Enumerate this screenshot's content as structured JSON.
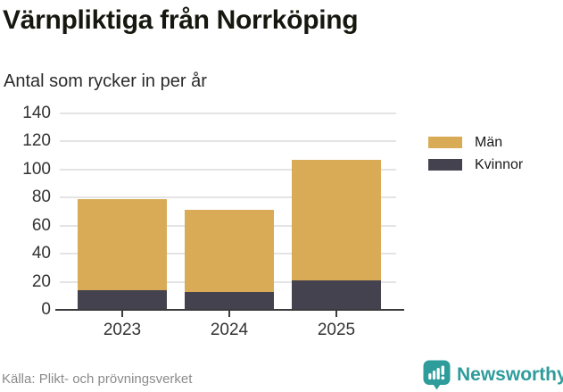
{
  "chart_data": {
    "type": "bar",
    "stacked": true,
    "title": "Värnpliktiga från Norrköping",
    "subtitle": "Antal som rycker in per år",
    "categories": [
      "2023",
      "2024",
      "2025"
    ],
    "series": [
      {
        "name": "Män",
        "color": "#d9ab57",
        "values": [
          65,
          58,
          86
        ]
      },
      {
        "name": "Kvinnor",
        "color": "#44424f",
        "values": [
          14,
          13,
          21
        ]
      }
    ],
    "stack_bottom_to_top": [
      "Kvinnor",
      "Män"
    ],
    "stacked_totals": [
      79,
      71,
      107
    ],
    "ylim": [
      0,
      140
    ],
    "yticks": [
      0,
      20,
      40,
      60,
      80,
      100,
      120,
      140
    ],
    "grid": true,
    "legend_position": "right"
  },
  "footer": {
    "source": "Källa: Plikt- och prövningsverket",
    "brand": "Newsworthy",
    "brand_color": "#2f9c9c"
  }
}
